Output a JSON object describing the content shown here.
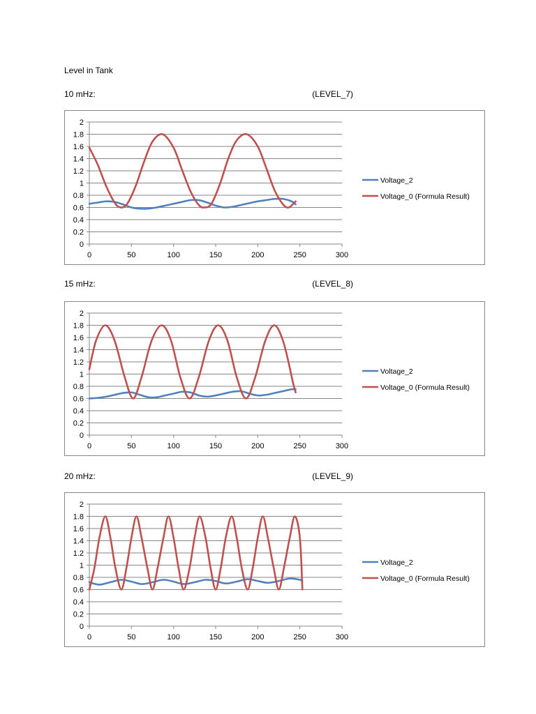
{
  "page": {
    "title": "Level in Tank"
  },
  "sections": [
    {
      "label": "10 mHz:",
      "level": "(LEVEL_7)"
    },
    {
      "label": "15 mHz:",
      "level": "(LEVEL_8)"
    },
    {
      "label": "20 mHz:",
      "level": "(LEVEL_9)"
    }
  ],
  "colors": {
    "voltage_2": "#4F81BD",
    "voltage_0": "#C0504D",
    "gridline": "#868686"
  },
  "chart_data": [
    {
      "type": "line",
      "title": "",
      "xlabel": "",
      "ylabel": "",
      "xlim": [
        0,
        300
      ],
      "ylim": [
        0,
        2
      ],
      "x_ticks": [
        "0",
        "50",
        "100",
        "150",
        "200",
        "250",
        "300"
      ],
      "y_ticks": [
        "0",
        "0.2",
        "0.4",
        "0.6",
        "0.8",
        "1",
        "1.2",
        "1.4",
        "1.6",
        "1.8",
        "2"
      ],
      "grid": true,
      "legend_position": "right",
      "series": [
        {
          "name": "Voltage_2",
          "color": "#4F81BD",
          "x": [
            0,
            10,
            20,
            30,
            40,
            50,
            60,
            70,
            80,
            90,
            100,
            110,
            120,
            130,
            140,
            150,
            160,
            170,
            180,
            190,
            200,
            210,
            220,
            230,
            240,
            245
          ],
          "y": [
            0.66,
            0.68,
            0.7,
            0.69,
            0.65,
            0.6,
            0.58,
            0.58,
            0.6,
            0.63,
            0.66,
            0.69,
            0.72,
            0.72,
            0.68,
            0.63,
            0.6,
            0.61,
            0.64,
            0.67,
            0.7,
            0.72,
            0.74,
            0.74,
            0.7,
            0.65
          ]
        },
        {
          "name": "Voltage_0 (Formula Result)",
          "color": "#C0504D",
          "x": [
            0,
            10,
            20,
            30,
            37,
            45,
            55,
            65,
            75,
            87,
            100,
            110,
            120,
            130,
            137,
            145,
            155,
            165,
            175,
            187,
            200,
            210,
            220,
            230,
            237,
            245
          ],
          "y": [
            1.58,
            1.3,
            0.95,
            0.68,
            0.6,
            0.66,
            0.95,
            1.35,
            1.68,
            1.8,
            1.58,
            1.22,
            0.87,
            0.64,
            0.6,
            0.66,
            0.98,
            1.4,
            1.7,
            1.8,
            1.6,
            1.25,
            0.88,
            0.65,
            0.6,
            0.7
          ]
        }
      ]
    },
    {
      "type": "line",
      "title": "",
      "xlabel": "",
      "ylabel": "",
      "xlim": [
        0,
        300
      ],
      "ylim": [
        0,
        2
      ],
      "x_ticks": [
        "0",
        "50",
        "100",
        "150",
        "200",
        "250",
        "300"
      ],
      "y_ticks": [
        "0",
        "0.2",
        "0.4",
        "0.6",
        "0.8",
        "1",
        "1.2",
        "1.4",
        "1.6",
        "1.8",
        "2"
      ],
      "grid": true,
      "legend_position": "right",
      "series": [
        {
          "name": "Voltage_2",
          "color": "#4F81BD",
          "x": [
            0,
            10,
            20,
            30,
            40,
            50,
            60,
            70,
            80,
            90,
            100,
            110,
            120,
            130,
            140,
            150,
            160,
            170,
            180,
            190,
            200,
            210,
            220,
            230,
            240,
            245
          ],
          "y": [
            0.6,
            0.61,
            0.63,
            0.66,
            0.69,
            0.7,
            0.66,
            0.62,
            0.62,
            0.65,
            0.68,
            0.71,
            0.7,
            0.65,
            0.63,
            0.65,
            0.68,
            0.71,
            0.72,
            0.68,
            0.65,
            0.66,
            0.69,
            0.72,
            0.75,
            0.75
          ]
        },
        {
          "name": "Voltage_0 (Formula Result)",
          "color": "#C0504D",
          "x": [
            0,
            8,
            19,
            30,
            42,
            52,
            62,
            74,
            86,
            97,
            108,
            119,
            130,
            142,
            153,
            164,
            175,
            186,
            197,
            209,
            220,
            231,
            242,
            245
          ],
          "y": [
            1.08,
            1.55,
            1.8,
            1.55,
            0.95,
            0.6,
            0.95,
            1.55,
            1.8,
            1.55,
            0.95,
            0.6,
            0.95,
            1.55,
            1.8,
            1.55,
            0.95,
            0.6,
            0.95,
            1.55,
            1.8,
            1.5,
            0.85,
            0.7
          ]
        }
      ]
    },
    {
      "type": "line",
      "title": "",
      "xlabel": "",
      "ylabel": "",
      "xlim": [
        0,
        300
      ],
      "ylim": [
        0,
        2
      ],
      "x_ticks": [
        "0",
        "50",
        "100",
        "150",
        "200",
        "250",
        "300"
      ],
      "y_ticks": [
        "0",
        "0.2",
        "0.4",
        "0.6",
        "0.8",
        "1",
        "1.2",
        "1.4",
        "1.6",
        "1.8",
        "2"
      ],
      "grid": true,
      "legend_position": "right",
      "series": [
        {
          "name": "Voltage_2",
          "color": "#4F81BD",
          "x": [
            0,
            12,
            25,
            38,
            50,
            62,
            75,
            88,
            100,
            112,
            125,
            138,
            150,
            162,
            175,
            188,
            200,
            212,
            225,
            238,
            250,
            253
          ],
          "y": [
            0.72,
            0.68,
            0.72,
            0.76,
            0.73,
            0.69,
            0.72,
            0.76,
            0.73,
            0.69,
            0.72,
            0.76,
            0.74,
            0.7,
            0.73,
            0.77,
            0.74,
            0.71,
            0.74,
            0.78,
            0.76,
            0.74
          ]
        },
        {
          "name": "Voltage_0 (Formula Result)",
          "color": "#C0504D",
          "x": [
            0,
            6,
            12,
            19,
            25,
            31,
            38,
            44,
            50,
            56,
            62,
            69,
            75,
            81,
            88,
            94,
            100,
            106,
            112,
            119,
            125,
            131,
            138,
            144,
            150,
            156,
            162,
            169,
            175,
            181,
            188,
            194,
            200,
            206,
            212,
            219,
            225,
            231,
            238,
            244,
            250,
            253
          ],
          "y": [
            0.6,
            0.95,
            1.45,
            1.8,
            1.45,
            0.95,
            0.6,
            0.95,
            1.45,
            1.8,
            1.45,
            0.95,
            0.6,
            0.95,
            1.45,
            1.8,
            1.45,
            0.95,
            0.6,
            0.95,
            1.45,
            1.8,
            1.45,
            0.95,
            0.6,
            0.95,
            1.45,
            1.8,
            1.45,
            0.95,
            0.6,
            0.95,
            1.45,
            1.8,
            1.45,
            0.95,
            0.6,
            0.95,
            1.45,
            1.8,
            1.45,
            0.6
          ]
        }
      ]
    }
  ]
}
